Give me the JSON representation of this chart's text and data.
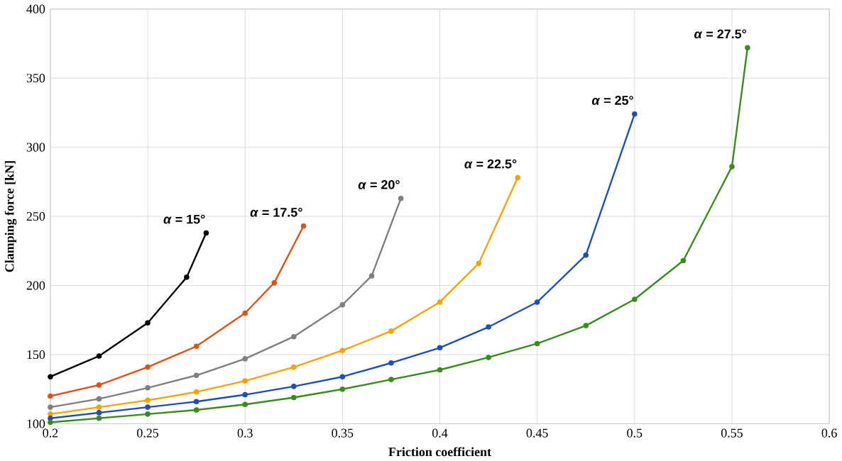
{
  "chart_data": {
    "type": "line",
    "xlabel": "Friction coefficient",
    "ylabel": "Clamping force [kN]",
    "xlim": [
      0.2,
      0.6
    ],
    "ylim": [
      100,
      400
    ],
    "xticks": [
      0.2,
      0.25,
      0.3,
      0.35,
      0.4,
      0.45,
      0.5,
      0.55,
      0.6
    ],
    "yticks": [
      100,
      150,
      200,
      250,
      300,
      350,
      400
    ],
    "grid": true,
    "marker": "circle",
    "line_style": "solid",
    "series": [
      {
        "name": "*α* = 15°",
        "color": "#000000",
        "x": [
          0.2,
          0.225,
          0.25,
          0.27,
          0.28
        ],
        "values": [
          134,
          149,
          173,
          206,
          238
        ]
      },
      {
        "name": "*α* = 17.5°",
        "color": "#d9541a",
        "x": [
          0.2,
          0.225,
          0.25,
          0.275,
          0.3,
          0.315,
          0.33
        ],
        "values": [
          120,
          128,
          141,
          156,
          180,
          202,
          243
        ]
      },
      {
        "name": "*α* = 20°",
        "color": "#7f7f7f",
        "x": [
          0.2,
          0.225,
          0.25,
          0.275,
          0.3,
          0.325,
          0.35,
          0.365,
          0.38
        ],
        "values": [
          112,
          118,
          126,
          135,
          147,
          163,
          186,
          207,
          263
        ]
      },
      {
        "name": "*α* = 22.5°",
        "color": "#f5a300",
        "x": [
          0.2,
          0.225,
          0.25,
          0.275,
          0.3,
          0.325,
          0.35,
          0.375,
          0.4,
          0.42,
          0.44
        ],
        "values": [
          107,
          112,
          117,
          123,
          131,
          141,
          153,
          167,
          188,
          216,
          278
        ]
      },
      {
        "name": "*α* = 25°",
        "color": "#1f4fb0",
        "x": [
          0.2,
          0.225,
          0.25,
          0.275,
          0.3,
          0.325,
          0.35,
          0.375,
          0.4,
          0.425,
          0.45,
          0.475,
          0.5
        ],
        "values": [
          104,
          108,
          112,
          116,
          121,
          127,
          134,
          144,
          155,
          170,
          188,
          222,
          324
        ]
      },
      {
        "name": "*α* = 27.5°",
        "color": "#3a8a1e",
        "x": [
          0.2,
          0.225,
          0.25,
          0.275,
          0.3,
          0.325,
          0.35,
          0.375,
          0.4,
          0.425,
          0.45,
          0.475,
          0.5,
          0.525,
          0.55,
          0.558
        ],
        "values": [
          101,
          104,
          107,
          110,
          114,
          119,
          125,
          132,
          139,
          148,
          158,
          171,
          190,
          218,
          286,
          372
        ]
      }
    ]
  }
}
